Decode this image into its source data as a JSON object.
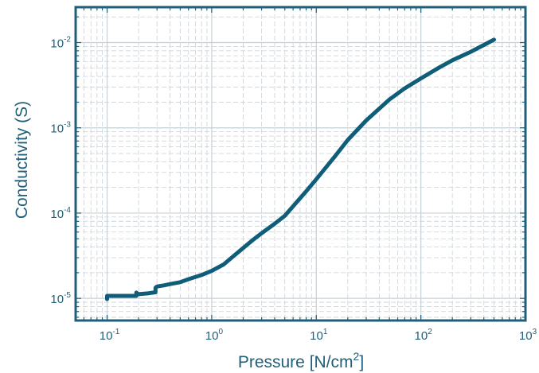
{
  "chart_data": {
    "type": "line",
    "title": "",
    "xlabel": {
      "text": "Pressure [N/cm",
      "sup": "2",
      "suffix": "]"
    },
    "ylabel": "Conductivity (S)",
    "xscale": "log",
    "yscale": "log",
    "xlim": [
      0.05,
      1000
    ],
    "ylim": [
      5.5e-06,
      0.026
    ],
    "grid": true,
    "legend": "none",
    "series_color": "#0f5d78",
    "axis_color": "#1f5f78",
    "x_ticks": [
      {
        "value": 0.1,
        "base": "10",
        "exp": "-1"
      },
      {
        "value": 1,
        "base": "10",
        "exp": "0"
      },
      {
        "value": 10,
        "base": "10",
        "exp": "1"
      },
      {
        "value": 100,
        "base": "10",
        "exp": "2"
      },
      {
        "value": 1000,
        "base": "10",
        "exp": "3"
      }
    ],
    "y_ticks": [
      {
        "value": 1e-05,
        "base": "10",
        "exp": "-5"
      },
      {
        "value": 0.0001,
        "base": "10",
        "exp": "-4"
      },
      {
        "value": 0.001,
        "base": "10",
        "exp": "-3"
      },
      {
        "value": 0.01,
        "base": "10",
        "exp": "-2"
      }
    ],
    "series": [
      {
        "x": [
          0.1,
          0.1,
          0.1,
          0.12,
          0.15,
          0.19,
          0.19,
          0.2,
          0.25,
          0.29,
          0.29,
          0.3,
          0.35,
          0.4,
          0.5,
          0.6,
          0.8,
          1.0,
          1.3,
          1.6,
          2.0,
          2.5,
          3.0,
          4.0,
          5.0,
          6.0,
          8.0,
          10,
          15,
          20,
          30,
          50,
          70,
          100,
          150,
          200,
          300,
          500
        ],
        "y": [
          9.8e-06,
          1.07e-05,
          1.07e-05,
          1.07e-05,
          1.07e-05,
          1.07e-05,
          1.17e-05,
          1.12e-05,
          1.15e-05,
          1.18e-05,
          1.33e-05,
          1.38e-05,
          1.42e-05,
          1.47e-05,
          1.55e-05,
          1.68e-05,
          1.88e-05,
          2.1e-05,
          2.5e-05,
          3.1e-05,
          3.9e-05,
          4.9e-05,
          5.8e-05,
          7.5e-05,
          9.3e-05,
          0.00012,
          0.00018,
          0.00025,
          0.00046,
          0.00072,
          0.00122,
          0.00215,
          0.0029,
          0.0038,
          0.0051,
          0.0062,
          0.0078,
          0.0108
        ]
      }
    ]
  }
}
